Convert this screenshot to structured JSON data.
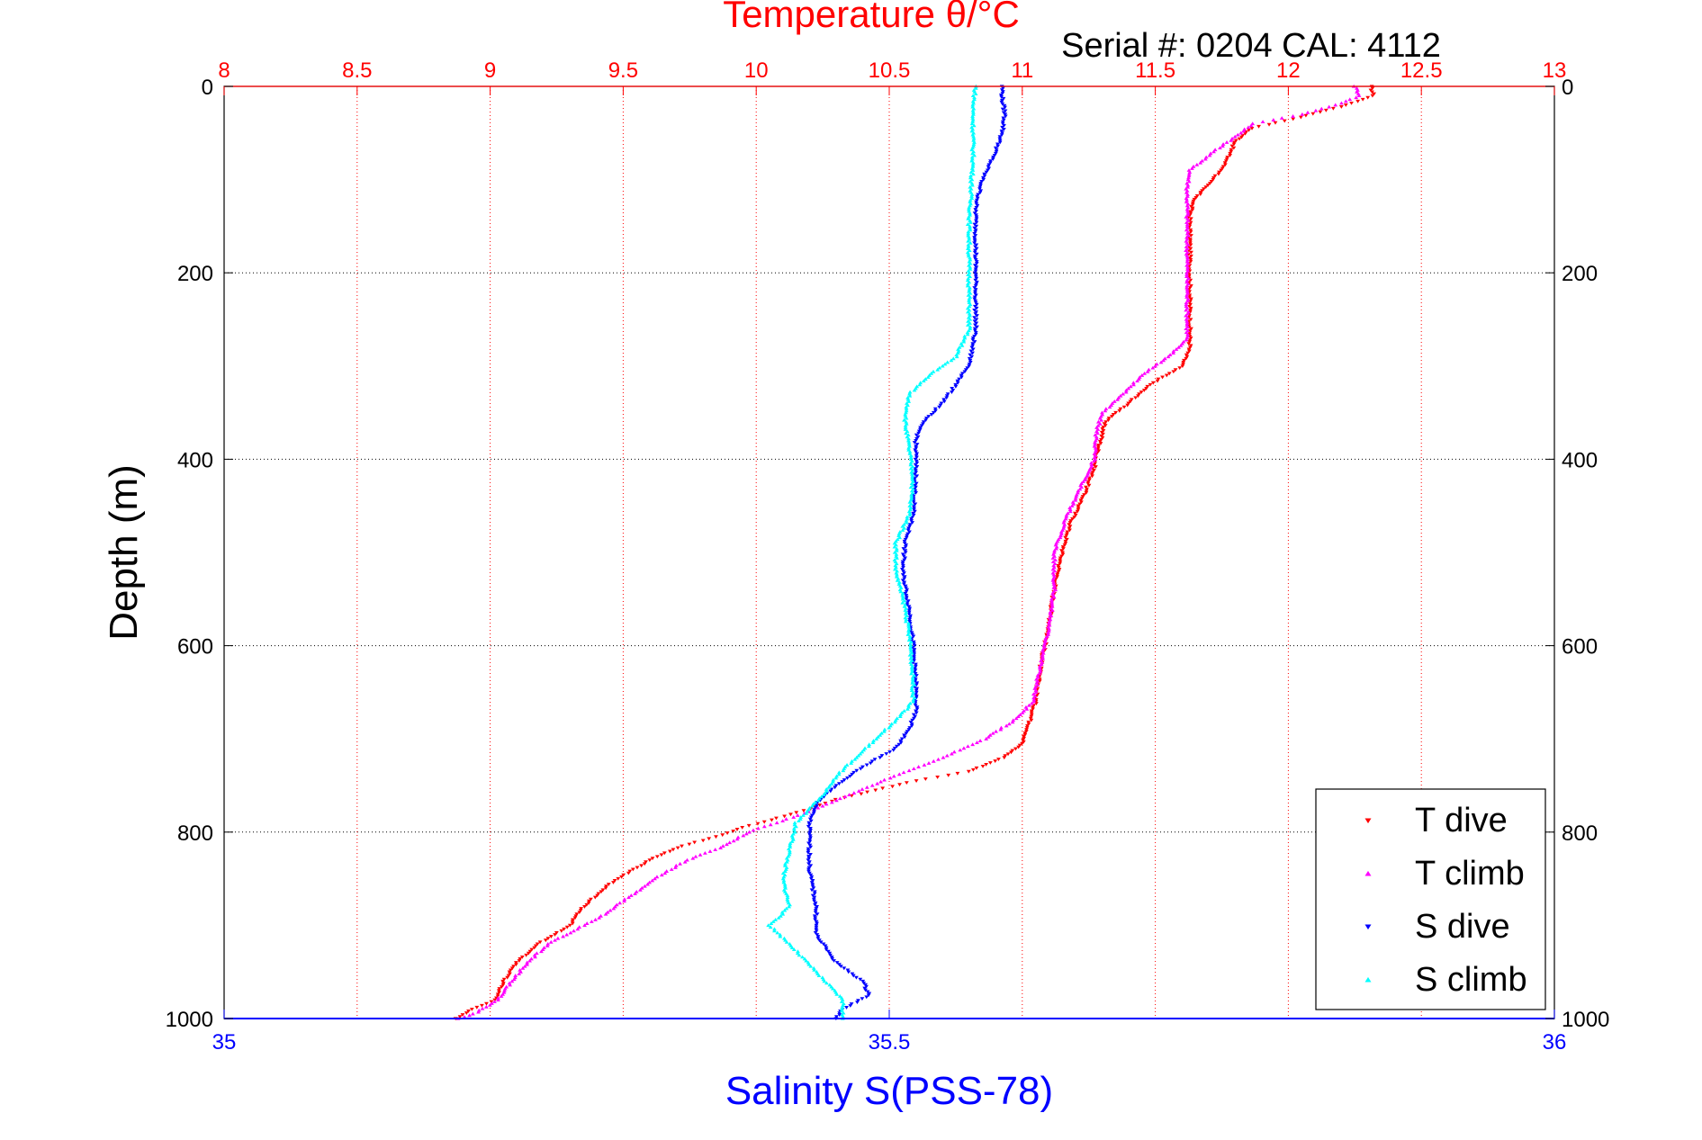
{
  "chart_data": {
    "type": "scatter",
    "title": "Temperature θ/°C",
    "subtitle": "Serial #: 0204  CAL: 4112",
    "ylabel": "Depth (m)",
    "xlabel_bottom": "Salinity S(PSS-78)",
    "y_axis": {
      "range": [
        0,
        1000
      ],
      "reversed": true,
      "ticks": [
        0,
        200,
        400,
        600,
        800,
        1000
      ],
      "tick_labels": [
        "0",
        "200",
        "400",
        "600",
        "800",
        "1000"
      ]
    },
    "x_top_axis": {
      "quantity": "temperature",
      "range": [
        8,
        13
      ],
      "ticks": [
        8,
        8.5,
        9,
        9.5,
        10,
        10.5,
        11,
        11.5,
        12,
        12.5,
        13
      ],
      "tick_labels": [
        "8",
        "8.5",
        "9",
        "9.5",
        "10",
        "10.5",
        "11",
        "11.5",
        "12",
        "12.5",
        "13"
      ],
      "color": "#ff0000",
      "grid": "dotted"
    },
    "x_bottom_axis": {
      "quantity": "salinity",
      "range": [
        35,
        36
      ],
      "ticks": [
        35,
        35.5,
        36
      ],
      "tick_labels": [
        "35",
        "35.5",
        "36"
      ],
      "color": "#0000ff"
    },
    "horizontal_grid": "dotted",
    "legend": {
      "position": "bottom-right"
    },
    "colors": {
      "title": "#ff0000",
      "salinity_label": "#0000ff",
      "grid_top": "#ff0000",
      "grid_depth": "#000000"
    },
    "series": [
      {
        "name": "T dive",
        "axis": "temperature",
        "color": "#ff0000",
        "marker": "triangle-down",
        "points": [
          [
            0,
            12.31
          ],
          [
            10,
            12.32
          ],
          [
            20,
            12.22
          ],
          [
            35,
            12.02
          ],
          [
            45,
            11.86
          ],
          [
            60,
            11.8
          ],
          [
            90,
            11.75
          ],
          [
            110,
            11.68
          ],
          [
            125,
            11.64
          ],
          [
            140,
            11.63
          ],
          [
            200,
            11.63
          ],
          [
            280,
            11.63
          ],
          [
            300,
            11.6
          ],
          [
            320,
            11.48
          ],
          [
            340,
            11.4
          ],
          [
            360,
            11.31
          ],
          [
            375,
            11.3
          ],
          [
            395,
            11.28
          ],
          [
            410,
            11.27
          ],
          [
            440,
            11.23
          ],
          [
            470,
            11.18
          ],
          [
            500,
            11.15
          ],
          [
            540,
            11.12
          ],
          [
            580,
            11.1
          ],
          [
            620,
            11.07
          ],
          [
            660,
            11.05
          ],
          [
            690,
            11.02
          ],
          [
            705,
            11.0
          ],
          [
            720,
            10.93
          ],
          [
            735,
            10.8
          ],
          [
            745,
            10.6
          ],
          [
            755,
            10.45
          ],
          [
            765,
            10.3
          ],
          [
            775,
            10.2
          ],
          [
            785,
            10.08
          ],
          [
            795,
            9.95
          ],
          [
            805,
            9.85
          ],
          [
            815,
            9.72
          ],
          [
            830,
            9.6
          ],
          [
            850,
            9.48
          ],
          [
            860,
            9.43
          ],
          [
            880,
            9.35
          ],
          [
            900,
            9.3
          ],
          [
            920,
            9.18
          ],
          [
            940,
            9.1
          ],
          [
            960,
            9.05
          ],
          [
            980,
            9.02
          ],
          [
            990,
            8.93
          ],
          [
            1000,
            8.87
          ]
        ]
      },
      {
        "name": "T climb",
        "axis": "temperature",
        "color": "#ff00ff",
        "marker": "triangle-up",
        "points": [
          [
            0,
            12.25
          ],
          [
            10,
            12.27
          ],
          [
            20,
            12.18
          ],
          [
            30,
            12.05
          ],
          [
            40,
            11.87
          ],
          [
            50,
            11.82
          ],
          [
            70,
            11.72
          ],
          [
            90,
            11.63
          ],
          [
            110,
            11.62
          ],
          [
            150,
            11.62
          ],
          [
            200,
            11.62
          ],
          [
            270,
            11.62
          ],
          [
            290,
            11.55
          ],
          [
            310,
            11.45
          ],
          [
            330,
            11.38
          ],
          [
            350,
            11.3
          ],
          [
            370,
            11.28
          ],
          [
            400,
            11.27
          ],
          [
            430,
            11.22
          ],
          [
            460,
            11.17
          ],
          [
            500,
            11.12
          ],
          [
            540,
            11.12
          ],
          [
            580,
            11.1
          ],
          [
            620,
            11.07
          ],
          [
            660,
            11.04
          ],
          [
            680,
            10.97
          ],
          [
            700,
            10.86
          ],
          [
            720,
            10.7
          ],
          [
            740,
            10.52
          ],
          [
            760,
            10.35
          ],
          [
            780,
            10.18
          ],
          [
            800,
            9.97
          ],
          [
            815,
            9.88
          ],
          [
            830,
            9.74
          ],
          [
            850,
            9.62
          ],
          [
            870,
            9.52
          ],
          [
            890,
            9.42
          ],
          [
            900,
            9.35
          ],
          [
            920,
            9.22
          ],
          [
            940,
            9.14
          ],
          [
            960,
            9.08
          ],
          [
            980,
            9.03
          ],
          [
            995,
            8.94
          ],
          [
            1000,
            8.88
          ]
        ]
      },
      {
        "name": "S dive",
        "axis": "salinity",
        "color": "#0000ff",
        "marker": "triangle-down",
        "points": [
          [
            0,
            35.585
          ],
          [
            15,
            35.585
          ],
          [
            30,
            35.587
          ],
          [
            50,
            35.585
          ],
          [
            70,
            35.58
          ],
          [
            100,
            35.57
          ],
          [
            130,
            35.565
          ],
          [
            200,
            35.565
          ],
          [
            260,
            35.565
          ],
          [
            300,
            35.56
          ],
          [
            320,
            35.55
          ],
          [
            340,
            35.54
          ],
          [
            360,
            35.525
          ],
          [
            380,
            35.52
          ],
          [
            420,
            35.52
          ],
          [
            460,
            35.518
          ],
          [
            490,
            35.512
          ],
          [
            520,
            35.51
          ],
          [
            560,
            35.515
          ],
          [
            600,
            35.518
          ],
          [
            640,
            35.52
          ],
          [
            670,
            35.52
          ],
          [
            690,
            35.515
          ],
          [
            710,
            35.505
          ],
          [
            730,
            35.48
          ],
          [
            750,
            35.46
          ],
          [
            770,
            35.445
          ],
          [
            790,
            35.44
          ],
          [
            810,
            35.44
          ],
          [
            840,
            35.44
          ],
          [
            880,
            35.445
          ],
          [
            910,
            35.445
          ],
          [
            940,
            35.46
          ],
          [
            960,
            35.48
          ],
          [
            975,
            35.485
          ],
          [
            990,
            35.465
          ],
          [
            1000,
            35.46
          ]
        ]
      },
      {
        "name": "S climb",
        "axis": "salinity",
        "color": "#00ffff",
        "marker": "triangle-up",
        "points": [
          [
            0,
            35.565
          ],
          [
            20,
            35.563
          ],
          [
            50,
            35.563
          ],
          [
            80,
            35.563
          ],
          [
            100,
            35.562
          ],
          [
            150,
            35.56
          ],
          [
            200,
            35.56
          ],
          [
            260,
            35.56
          ],
          [
            290,
            35.55
          ],
          [
            310,
            35.53
          ],
          [
            330,
            35.515
          ],
          [
            360,
            35.512
          ],
          [
            390,
            35.515
          ],
          [
            420,
            35.518
          ],
          [
            460,
            35.515
          ],
          [
            490,
            35.505
          ],
          [
            520,
            35.505
          ],
          [
            560,
            35.512
          ],
          [
            600,
            35.516
          ],
          [
            640,
            35.518
          ],
          [
            660,
            35.518
          ],
          [
            680,
            35.505
          ],
          [
            700,
            35.49
          ],
          [
            720,
            35.475
          ],
          [
            740,
            35.46
          ],
          [
            760,
            35.45
          ],
          [
            790,
            35.43
          ],
          [
            820,
            35.425
          ],
          [
            850,
            35.42
          ],
          [
            880,
            35.425
          ],
          [
            900,
            35.41
          ],
          [
            920,
            35.425
          ],
          [
            950,
            35.445
          ],
          [
            980,
            35.465
          ],
          [
            1000,
            35.465
          ]
        ]
      }
    ]
  }
}
